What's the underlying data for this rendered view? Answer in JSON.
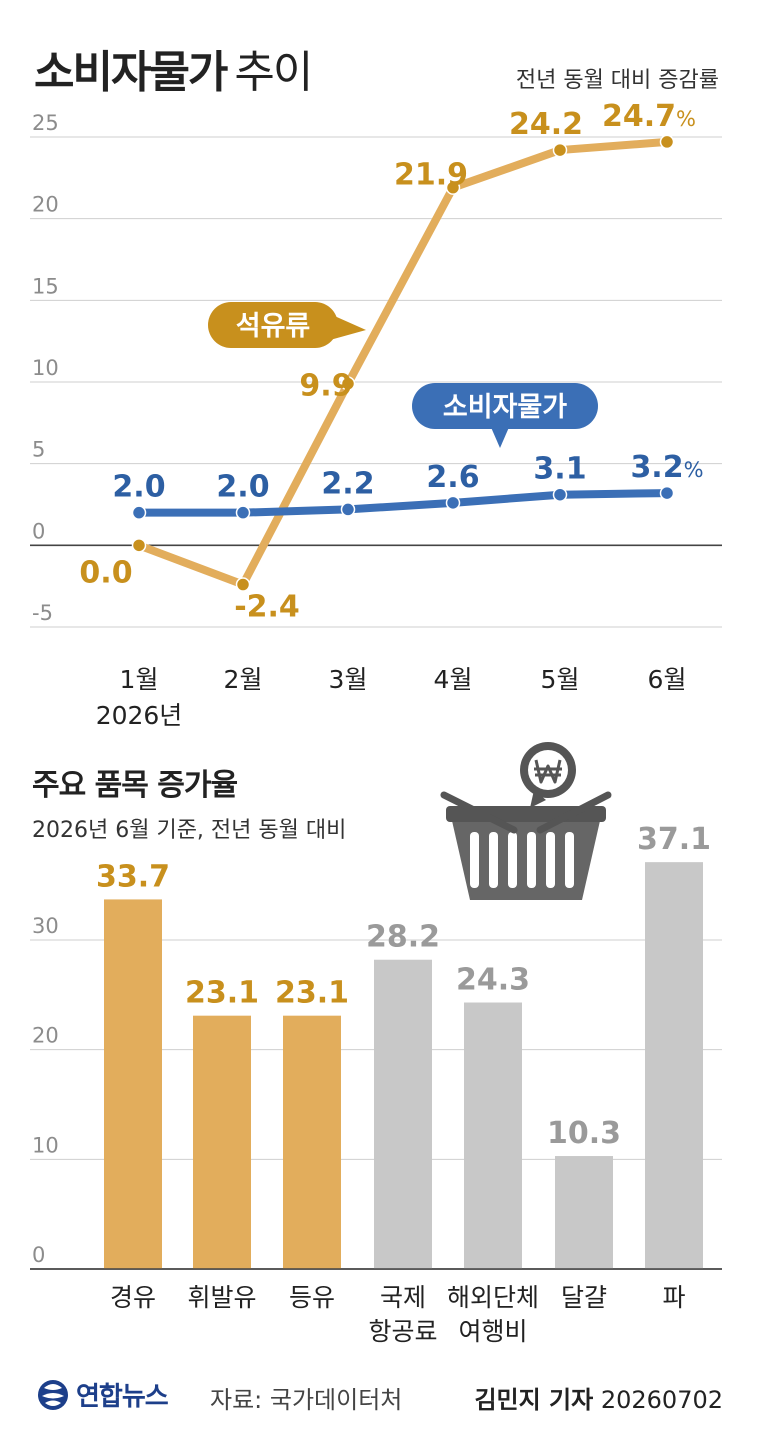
{
  "header": {
    "title_bold": "소비자물가",
    "title_thin": "추이",
    "subtitle": "전년 동월 대비 증감률"
  },
  "colors": {
    "oil": "#e2ad5c",
    "oil_label": "#c8901d",
    "cpi": "#3b6fb6",
    "cpi_label": "#2d5fa3",
    "bar_gray": "#c8c8c8",
    "gray_label": "#9a9a9a",
    "axis_text": "#8c8c8c"
  },
  "chart_data": [
    {
      "type": "line",
      "x": [
        "1월",
        "2월",
        "3월",
        "4월",
        "5월",
        "6월"
      ],
      "x_sublabel": "2026년",
      "ylim": [
        -5,
        25
      ],
      "yticks": [
        "25",
        "20",
        "15",
        "10",
        "5",
        "0",
        "-5"
      ],
      "grid": true,
      "unit": "%",
      "series": [
        {
          "name": "석유류",
          "values": [
            0.0,
            -2.4,
            9.9,
            21.9,
            24.2,
            24.7
          ],
          "labels": [
            "0.0",
            "-2.4",
            "9.9",
            "21.9",
            "24.2",
            "24.7"
          ]
        },
        {
          "name": "소비자물가",
          "values": [
            2.0,
            2.0,
            2.2,
            2.6,
            3.1,
            3.2
          ],
          "labels": [
            "2.0",
            "2.0",
            "2.2",
            "2.6",
            "3.1",
            "3.2"
          ]
        }
      ]
    },
    {
      "type": "bar",
      "title": "주요 품목 증가율",
      "subtitle": "2026년 6월 기준, 전년 동월 대비",
      "categories": [
        [
          "경유"
        ],
        [
          "휘발유"
        ],
        [
          "등유"
        ],
        [
          "국제",
          "항공료"
        ],
        [
          "해외단체",
          "여행비"
        ],
        [
          "달걀"
        ],
        [
          "파"
        ]
      ],
      "values": [
        33.7,
        23.1,
        23.1,
        28.2,
        24.3,
        10.3,
        37.1
      ],
      "labels": [
        "33.7",
        "23.1",
        "23.1",
        "28.2",
        "24.3",
        "10.3",
        "37.1"
      ],
      "highlight": [
        true,
        true,
        true,
        false,
        false,
        false,
        false
      ],
      "ylim": [
        0,
        40
      ],
      "yticks": [
        "30",
        "20",
        "10",
        "0"
      ],
      "grid": true
    }
  ],
  "footer": {
    "logo_text": "연합뉴스",
    "source": "자료: 국가데이터처",
    "reporter": "김민지 기자",
    "date": "20260702"
  }
}
